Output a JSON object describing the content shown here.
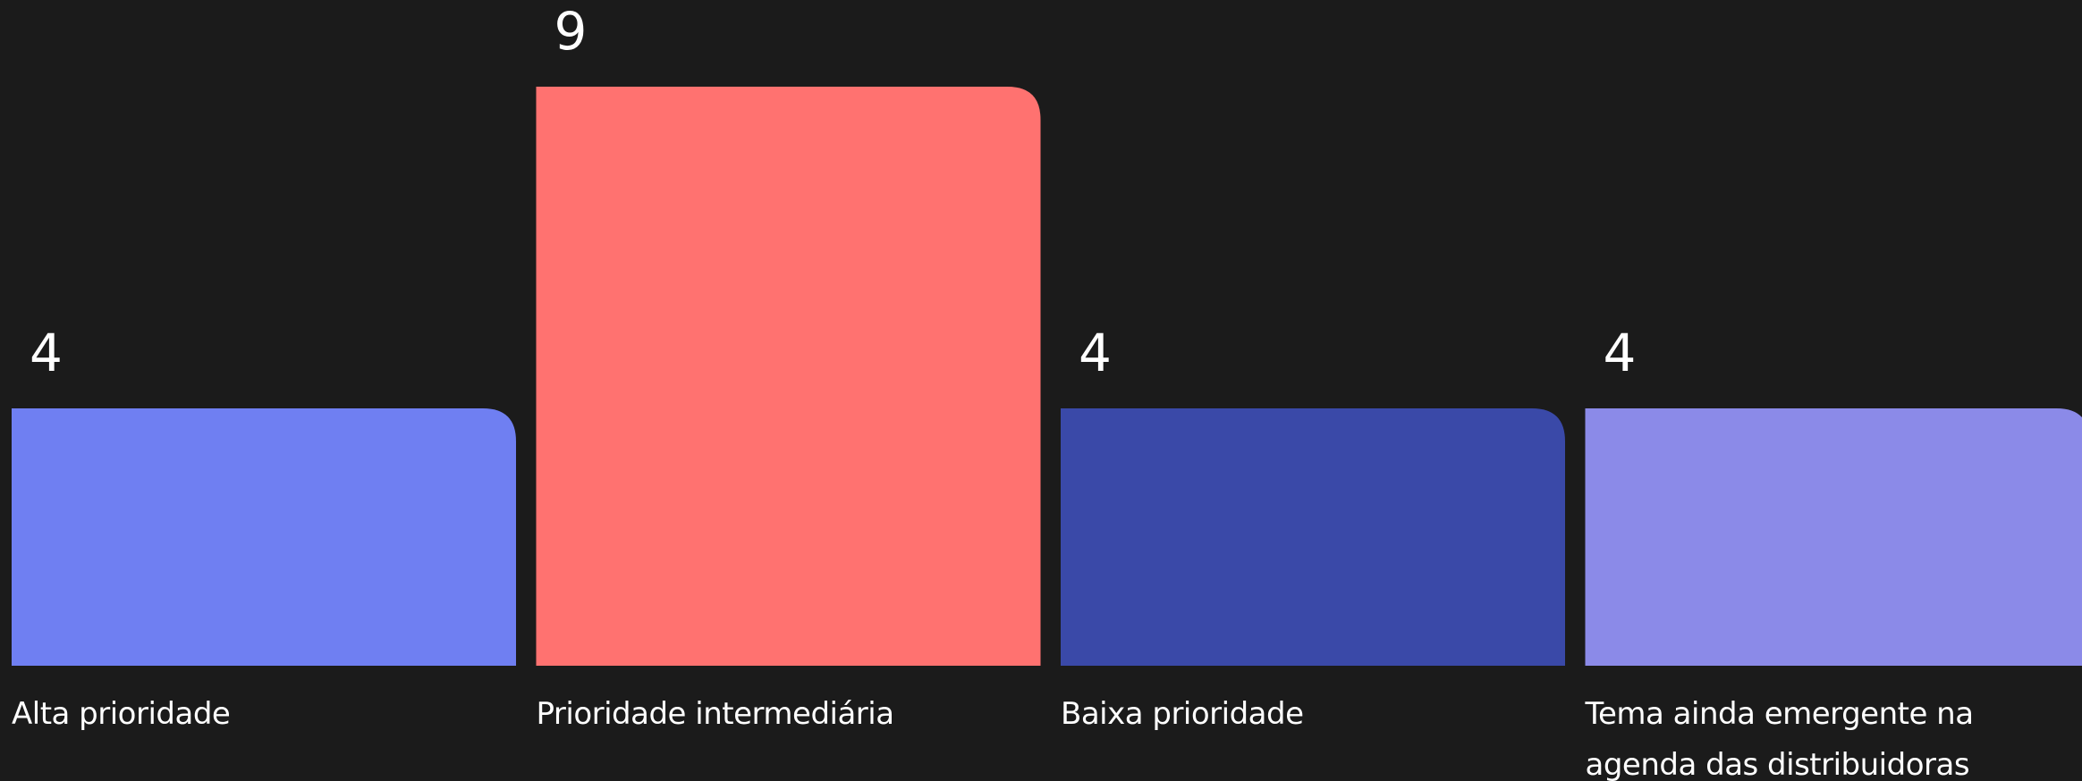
{
  "chart_data": {
    "type": "bar",
    "categories": [
      "Alta prioridade",
      "Prioridade intermediária",
      "Baixa prioridade",
      "Tema ainda emergente na agenda das distribuidoras"
    ],
    "values": [
      4,
      9,
      4,
      4
    ],
    "colors": [
      "#6f7ff2",
      "#ff7270",
      "#3a49a8",
      "#8b8ae8"
    ]
  }
}
